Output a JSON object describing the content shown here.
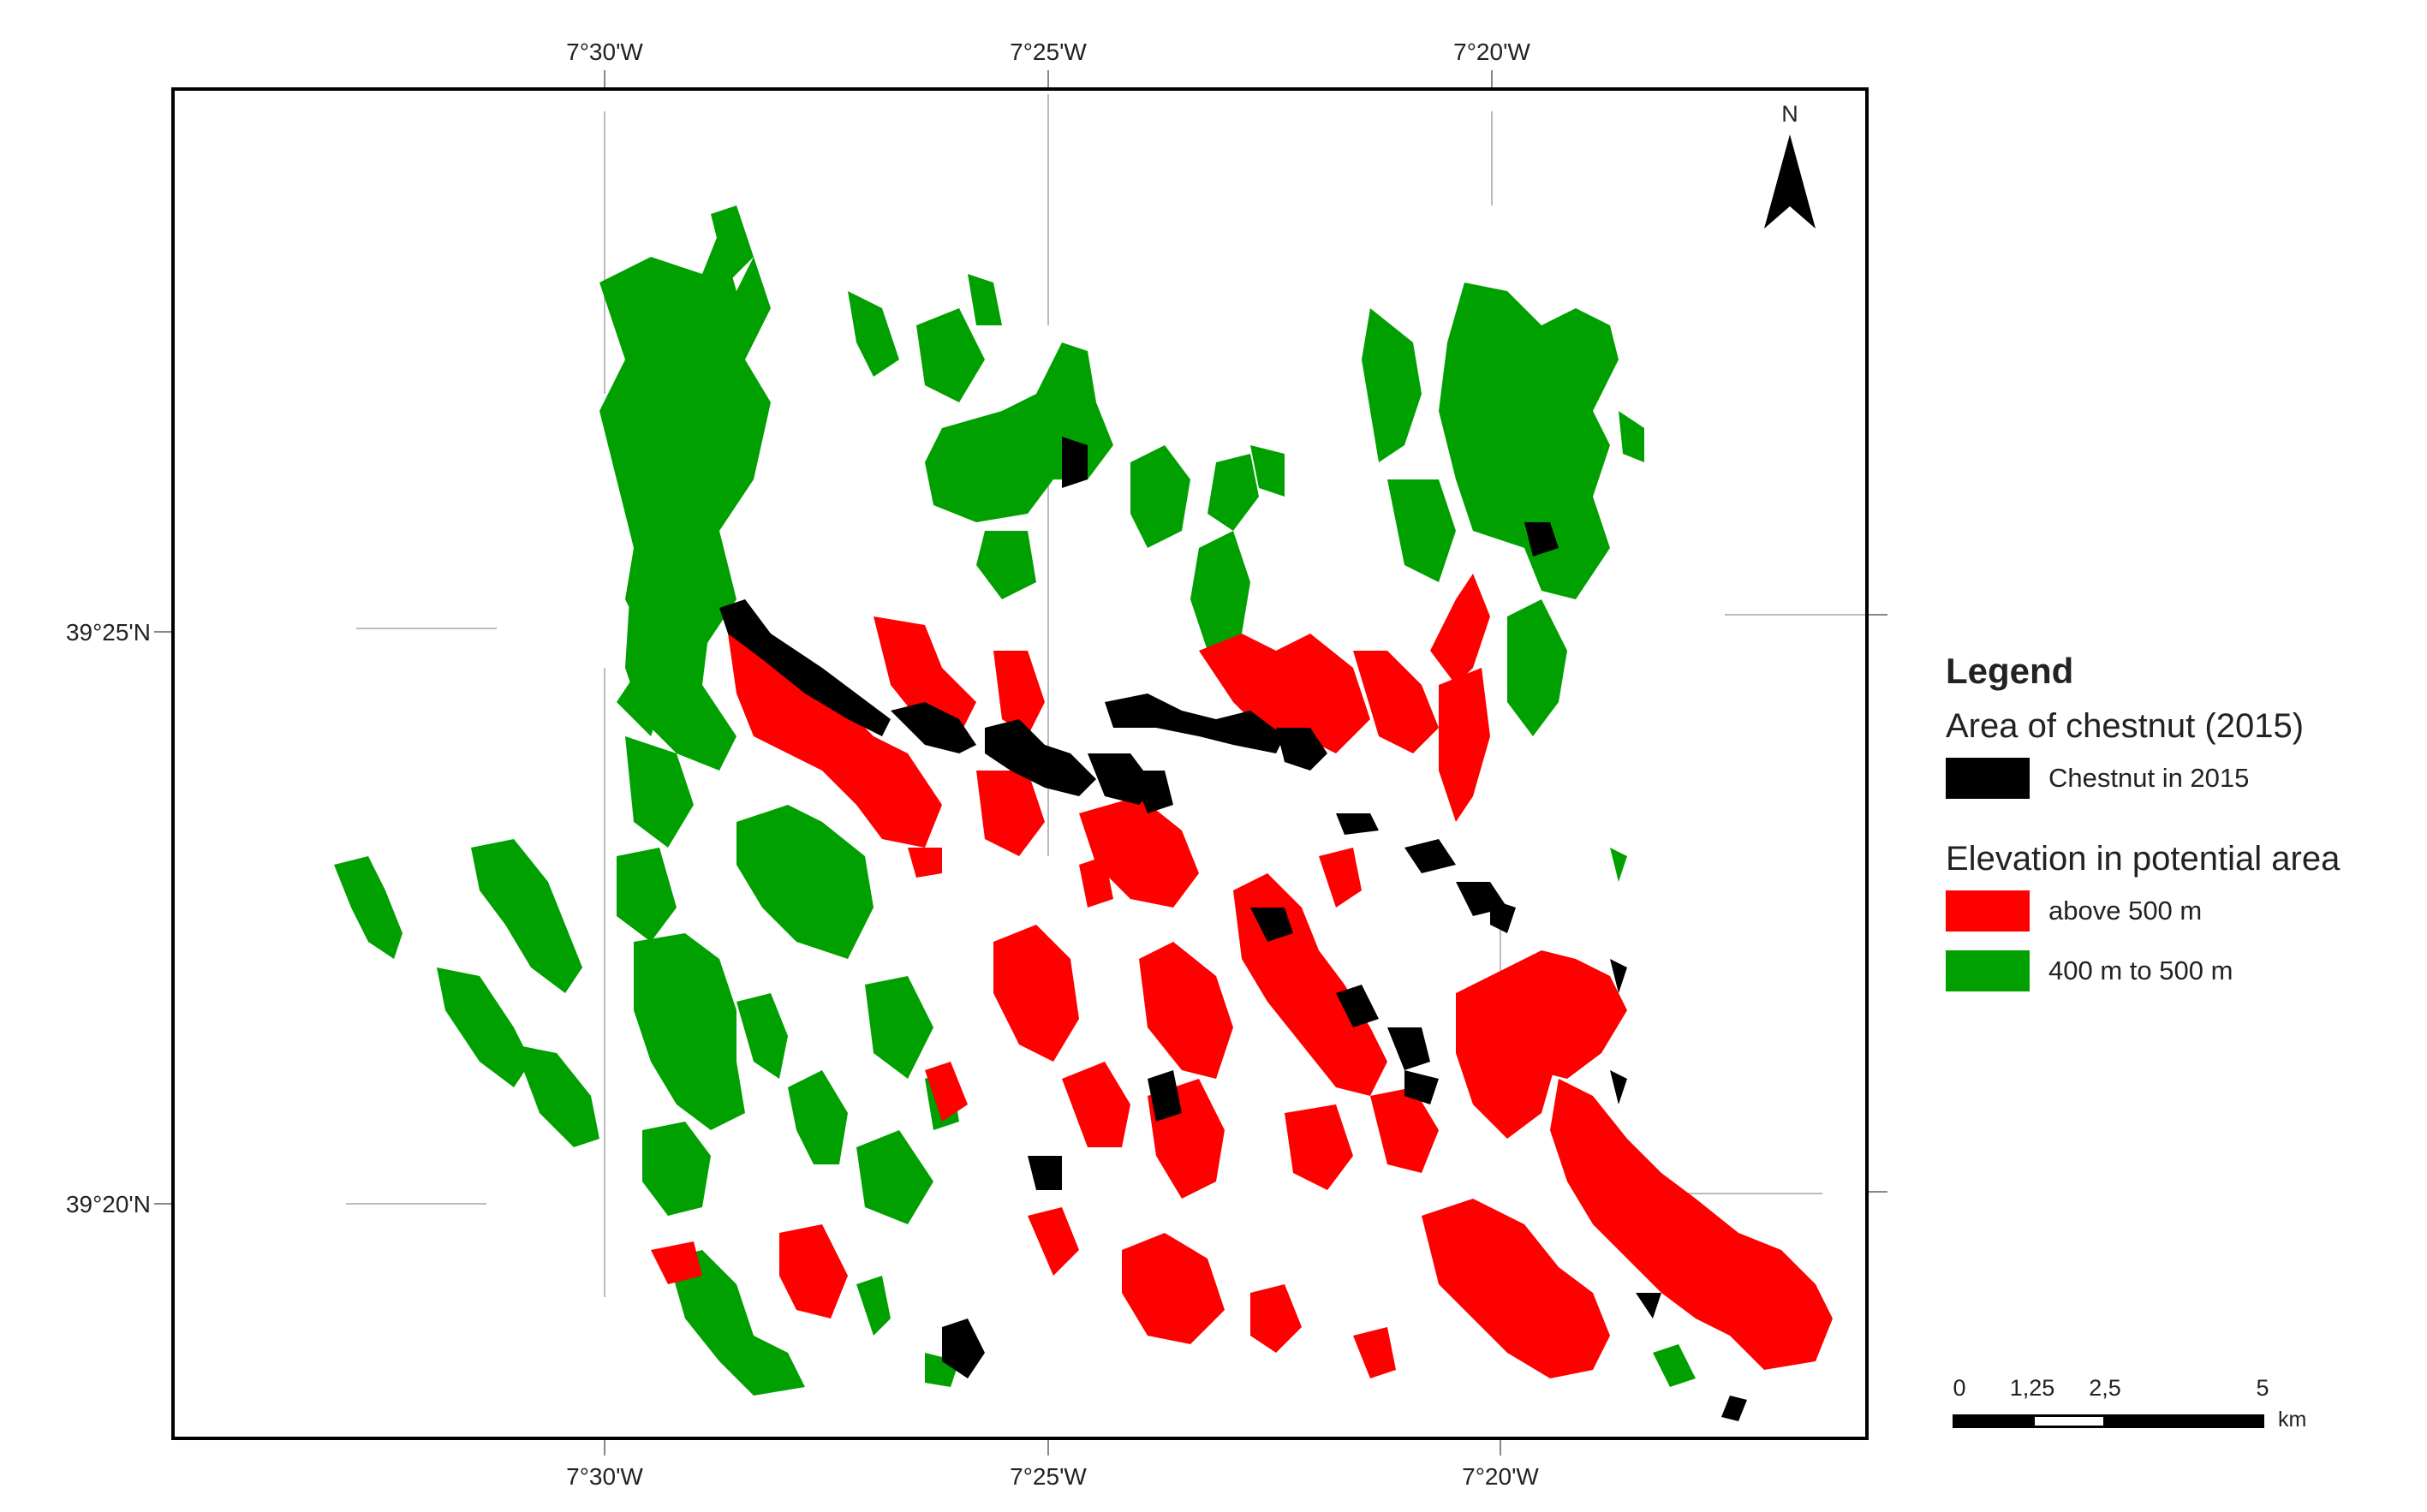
{
  "map": {
    "top_ticks": [
      "7°30'W",
      "7°25'W",
      "7°20'W"
    ],
    "bottom_ticks": [
      "7°30'W",
      "7°25'W",
      "7°20'W"
    ],
    "left_ticks": [
      "39°25'N",
      "39°20'N"
    ]
  },
  "north_arrow": {
    "label": "N"
  },
  "legend": {
    "title": "Legend",
    "group1_title": "Area of chestnut (2015)",
    "items1": [
      {
        "label": "Chestnut in 2015",
        "color": "#000000"
      }
    ],
    "group2_title": "Elevation in potential area",
    "items2": [
      {
        "label": "above 500 m",
        "color": "#ff0000"
      },
      {
        "label": "400 m to 500 m",
        "color": "#00a000"
      }
    ]
  },
  "scale_bar": {
    "labels": [
      "0",
      "1,25",
      "2,5",
      "5"
    ],
    "unit": "km"
  }
}
